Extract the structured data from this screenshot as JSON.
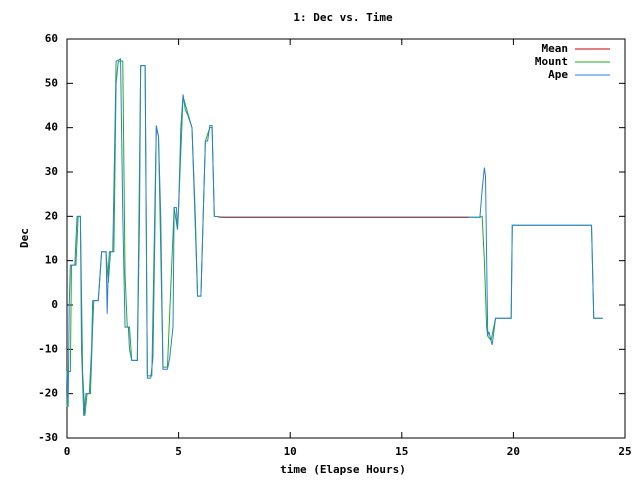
{
  "chart_data": {
    "type": "line",
    "title": "1: Dec vs. Time",
    "xlabel": "time (Elapse Hours)",
    "ylabel": "Dec",
    "xlim": [
      0,
      25
    ],
    "xticks": [
      0,
      5,
      10,
      15,
      20,
      25
    ],
    "ylim": [
      -30,
      60
    ],
    "yticks": [
      -30,
      -20,
      -10,
      0,
      10,
      20,
      30,
      40,
      50,
      60
    ],
    "grid": false,
    "legend": "top-right",
    "series": [
      {
        "name": "Mean",
        "color": "#cc0000",
        "x": [
          6.8,
          18.0
        ],
        "values": [
          19.8,
          19.8
        ]
      },
      {
        "name": "Mount",
        "color": "#22aa22",
        "x": [
          0,
          0.05,
          0.15,
          0.2,
          0.4,
          0.5,
          0.6,
          0.7,
          0.8,
          0.9,
          1.05,
          1.15,
          1.2,
          1.4,
          1.55,
          1.75,
          1.85,
          1.95,
          2.1,
          2.2,
          2.3,
          2.5,
          2.6,
          2.7,
          2.8,
          2.9,
          3.15,
          3.3,
          3.5,
          3.6,
          3.8,
          4.0,
          4.1,
          4.3,
          4.5,
          4.8,
          4.95,
          5.0,
          5.2,
          5.6,
          5.85,
          6.0,
          6.2,
          6.4,
          6.5,
          6.6,
          7.0,
          18.0,
          18.5,
          18.6,
          18.7,
          18.8,
          18.85,
          19.0,
          19.2,
          19.9,
          19.95,
          23.5,
          23.6,
          24.0
        ],
        "values": [
          -23,
          -15,
          -15,
          9,
          9,
          20,
          20,
          -15,
          -25,
          -20,
          -20,
          -5,
          1,
          1,
          12,
          12,
          5,
          12,
          12,
          50,
          55,
          55,
          7,
          -5,
          -5,
          -12.5,
          -12.5,
          54,
          54,
          -16,
          -16,
          40,
          38,
          -14,
          -14,
          22,
          17,
          22,
          47,
          40,
          2,
          2,
          37,
          40,
          40,
          20,
          19.8,
          19.8,
          19.8,
          20,
          10,
          -5,
          -7,
          -8,
          -3,
          -3,
          18,
          18,
          -3,
          -3
        ]
      },
      {
        "name": "Ape",
        "color": "#2a7fd4",
        "x": [
          0,
          0.05,
          0.1,
          0.15,
          0.35,
          0.45,
          0.6,
          0.65,
          0.75,
          0.85,
          1.0,
          1.1,
          1.15,
          1.4,
          1.5,
          1.55,
          1.75,
          1.8,
          1.85,
          1.9,
          2.05,
          2.15,
          2.2,
          2.4,
          2.5,
          2.6,
          2.75,
          2.8,
          2.9,
          3.15,
          3.25,
          3.3,
          3.5,
          3.6,
          3.75,
          3.85,
          3.95,
          4.0,
          4.1,
          4.2,
          4.3,
          4.5,
          4.6,
          4.75,
          4.8,
          4.9,
          4.95,
          5.0,
          5.1,
          5.2,
          5.3,
          5.4,
          5.6,
          5.75,
          5.85,
          6.0,
          6.1,
          6.2,
          6.3,
          6.4,
          6.5,
          6.6,
          7.0,
          18.0,
          18.5,
          18.6,
          18.7,
          18.75,
          18.85,
          18.9,
          19.0,
          19.05,
          19.15,
          19.2,
          19.9,
          19.95,
          23.5,
          23.6,
          24.0
        ],
        "values": [
          -15,
          -23,
          0,
          9,
          9,
          20,
          20,
          -10,
          -25,
          -20,
          -20,
          -10,
          1,
          1,
          8,
          12,
          12,
          -2,
          8,
          12,
          12,
          40,
          55,
          55.5,
          20,
          -5,
          -5,
          -10,
          -12.5,
          -12.5,
          20,
          54,
          54,
          -16.5,
          -16.5,
          -12,
          20,
          40.5,
          38,
          20,
          -14.5,
          -14.5,
          -12,
          -5,
          22,
          22,
          17,
          22,
          40,
          47.5,
          44,
          43,
          40,
          20,
          2,
          2,
          20,
          37,
          37,
          40.5,
          40.5,
          20,
          19.8,
          19.8,
          19.8,
          26,
          31,
          29,
          -7,
          -6,
          -8,
          -9,
          -5,
          -3,
          -3,
          18,
          18,
          -3,
          -3
        ]
      }
    ]
  }
}
